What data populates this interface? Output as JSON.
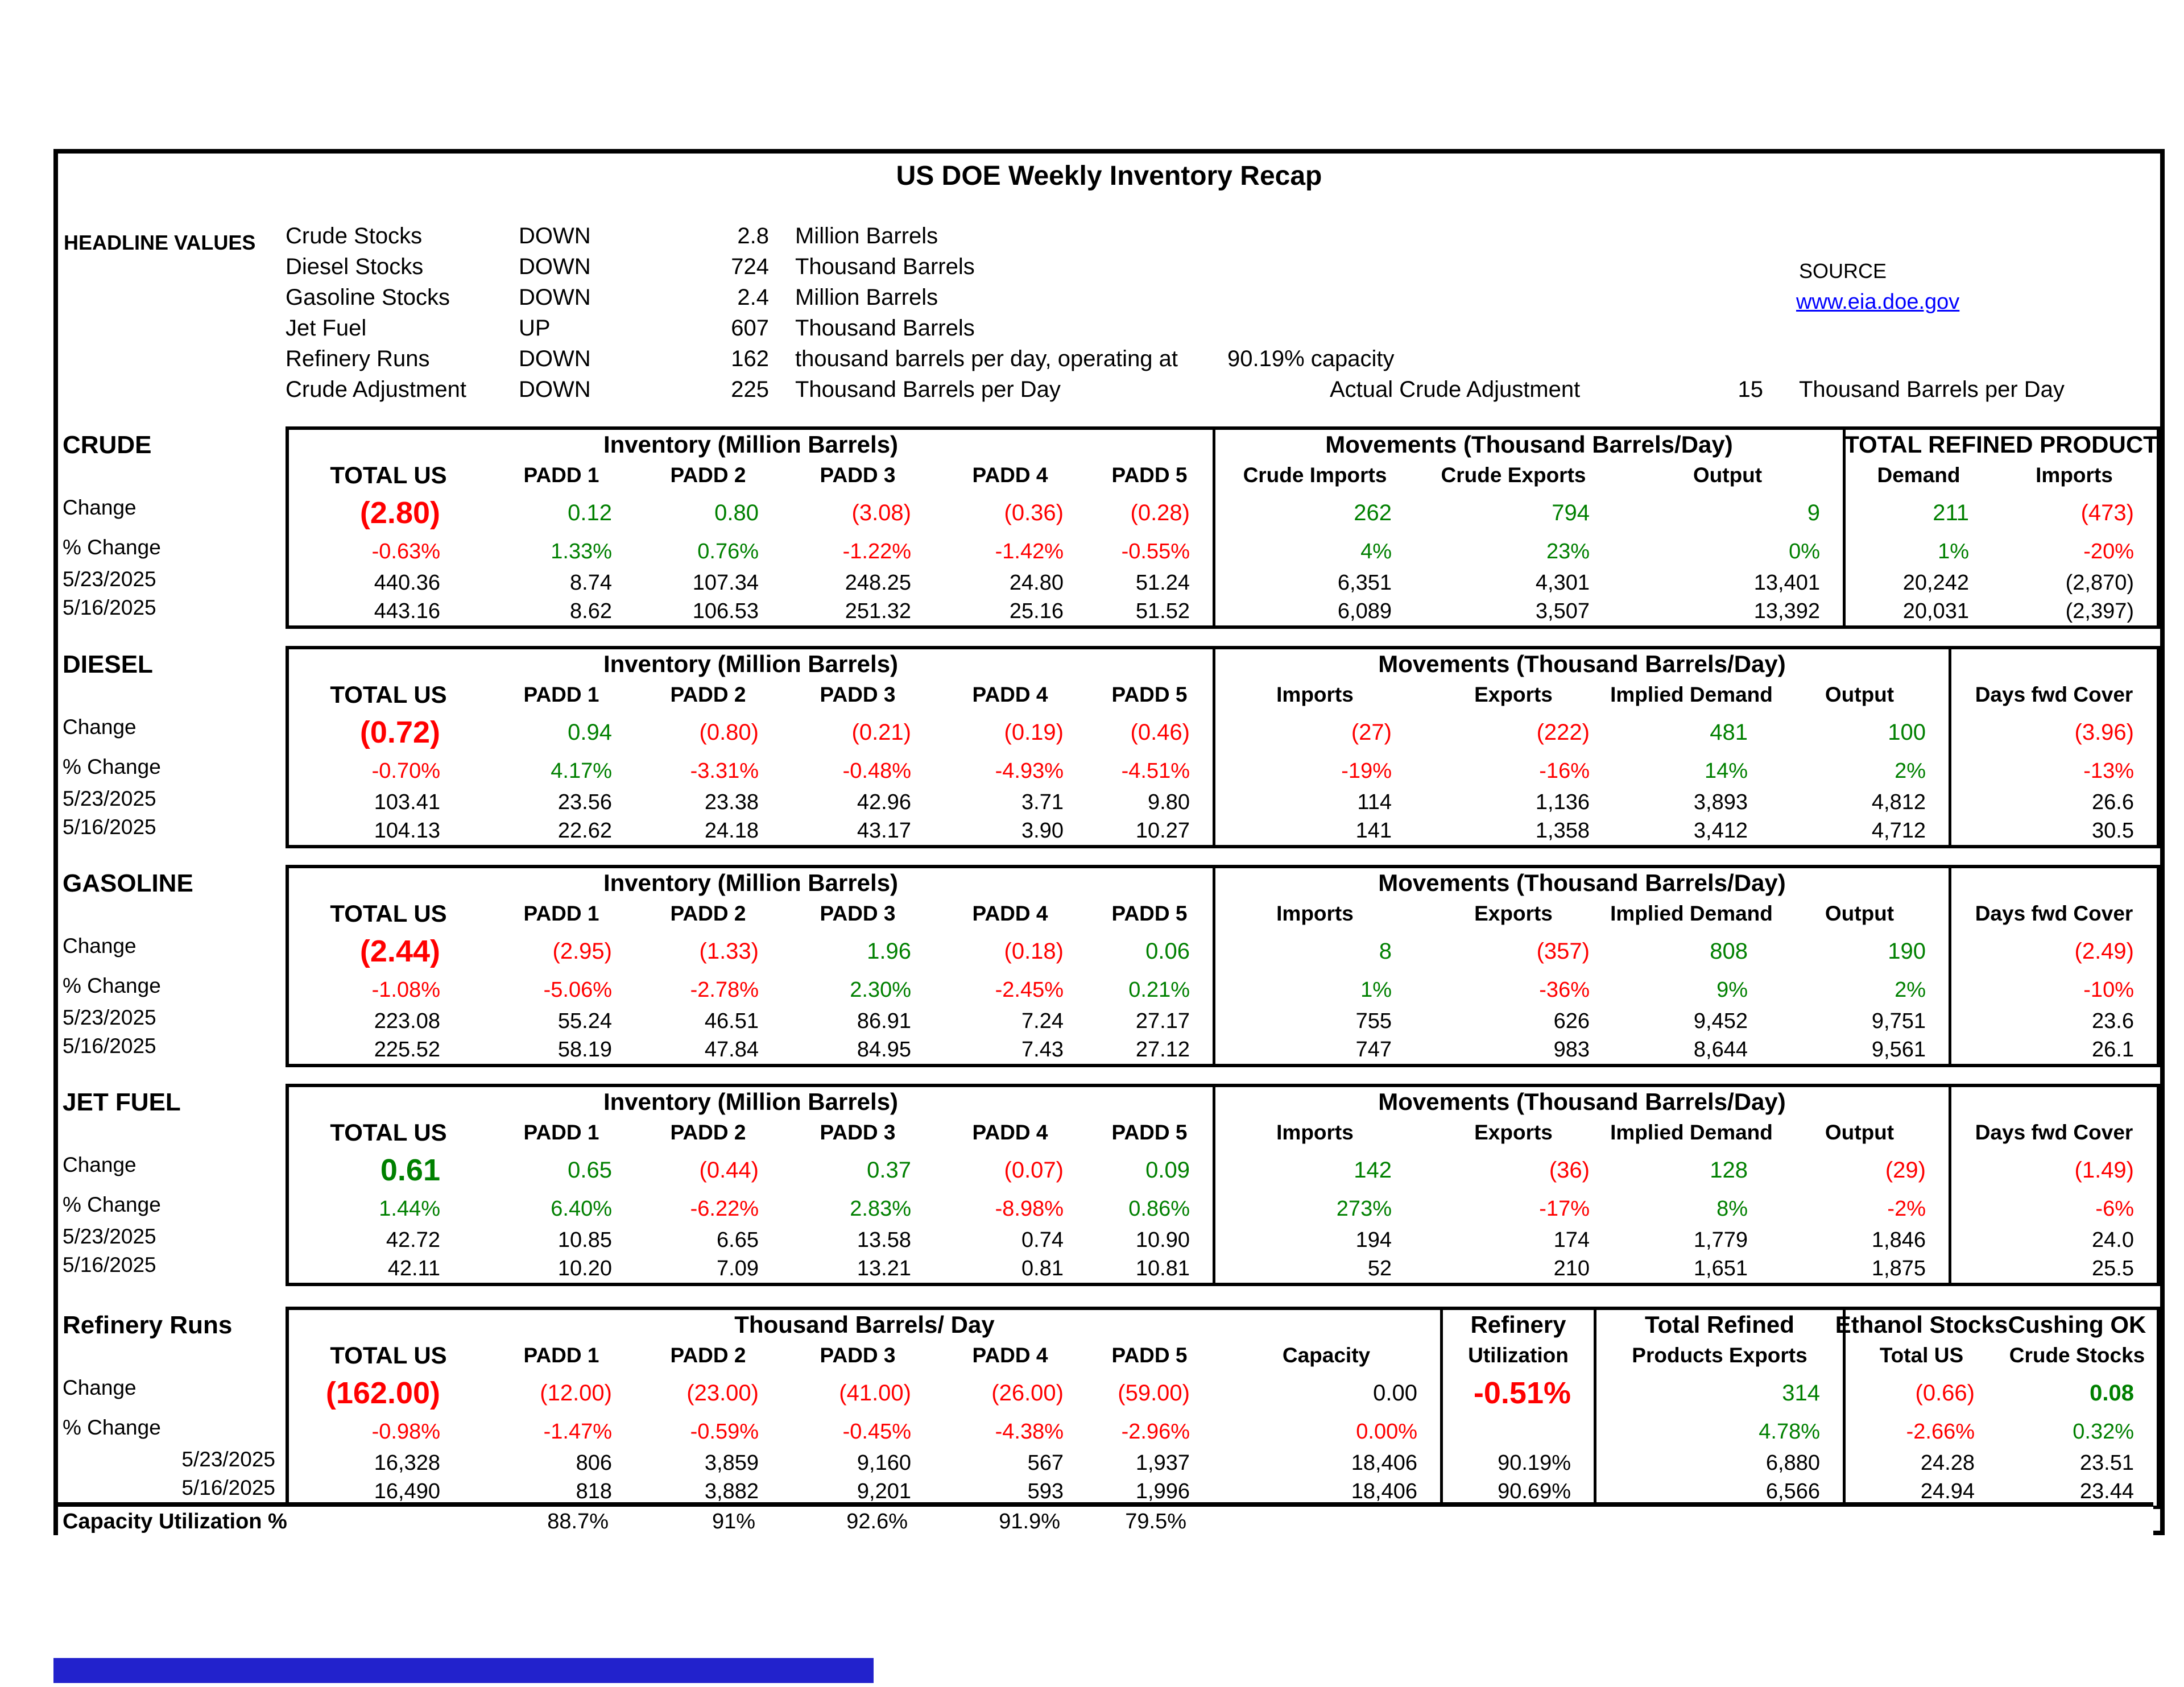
{
  "title": "US DOE Weekly Inventory Recap",
  "colors": {
    "negative": "#FF0000",
    "positive": "#008000",
    "link": "#0000FF",
    "footer_bar": "#2222CC"
  },
  "headline": {
    "label": "HEADLINE VALUES",
    "rows": [
      {
        "name": "Crude Stocks",
        "dir": "DOWN",
        "value": "2.8",
        "unit": "Million Barrels"
      },
      {
        "name": "Diesel Stocks",
        "dir": "DOWN",
        "value": "724",
        "unit": "Thousand Barrels"
      },
      {
        "name": "Gasoline Stocks",
        "dir": "DOWN",
        "value": "2.4",
        "unit": "Million Barrels"
      },
      {
        "name": "Jet Fuel",
        "dir": "UP",
        "value": "607",
        "unit": "Thousand Barrels"
      },
      {
        "name": "Refinery Runs",
        "dir": "DOWN",
        "value": "162",
        "unit": "thousand barrels per day, operating at",
        "capacity": "90.19% capacity"
      },
      {
        "name": "Crude Adjustment",
        "dir": "DOWN",
        "value": "225",
        "unit": "Thousand Barrels per Day"
      }
    ],
    "actual_adjustment": {
      "label": "Actual Crude Adjustment",
      "value": "15",
      "unit": "Thousand Barrels per Day"
    },
    "source": {
      "label": "SOURCE",
      "link": "www.eia.doe.gov"
    }
  },
  "sections": [
    {
      "key": "crude",
      "label": "CRUDE",
      "type": "crude",
      "groups": [
        {
          "label": "Inventory (Million Barrels)",
          "span": 6
        },
        {
          "label": "Movements (Thousand Barrels/Day)",
          "span": 3
        },
        {
          "label": "TOTAL REFINED PRODUCT",
          "span": 2
        }
      ],
      "columns": [
        "TOTAL US",
        "PADD 1",
        "PADD 2",
        "PADD 3",
        "PADD 4",
        "PADD 5",
        "Crude Imports",
        "Crude Exports",
        "Output",
        "Demand",
        "Imports"
      ],
      "rows": [
        {
          "label": "Change",
          "cells": [
            [
              "(2.80)",
              "r",
              "big"
            ],
            [
              "0.12",
              "g"
            ],
            [
              "0.80",
              "g"
            ],
            [
              "(3.08)",
              "r"
            ],
            [
              "(0.36)",
              "r"
            ],
            [
              "(0.28)",
              "r"
            ],
            [
              "262",
              "g"
            ],
            [
              "794",
              "g"
            ],
            [
              "9",
              "g"
            ],
            [
              "211",
              "g"
            ],
            [
              "(473)",
              "r"
            ]
          ]
        },
        {
          "label": "% Change",
          "cells": [
            [
              "-0.63%",
              "r"
            ],
            [
              "1.33%",
              "g"
            ],
            [
              "0.76%",
              "g"
            ],
            [
              "-1.22%",
              "r"
            ],
            [
              "-1.42%",
              "r"
            ],
            [
              "-0.55%",
              "r"
            ],
            [
              "4%",
              "g"
            ],
            [
              "23%",
              "g"
            ],
            [
              "0%",
              "g"
            ],
            [
              "1%",
              "g"
            ],
            [
              "-20%",
              "r"
            ]
          ]
        },
        {
          "label": "5/23/2025",
          "cells": [
            [
              "440.36"
            ],
            [
              "8.74"
            ],
            [
              "107.34"
            ],
            [
              "248.25"
            ],
            [
              "24.80"
            ],
            [
              "51.24"
            ],
            [
              "6,351"
            ],
            [
              "4,301"
            ],
            [
              "13,401"
            ],
            [
              "20,242"
            ],
            [
              "(2,870)"
            ]
          ]
        },
        {
          "label": "5/16/2025",
          "cells": [
            [
              "443.16"
            ],
            [
              "8.62"
            ],
            [
              "106.53"
            ],
            [
              "251.32"
            ],
            [
              "25.16"
            ],
            [
              "51.52"
            ],
            [
              "6,089"
            ],
            [
              "3,507"
            ],
            [
              "13,392"
            ],
            [
              "20,031"
            ],
            [
              "(2,397)"
            ]
          ]
        }
      ]
    },
    {
      "key": "diesel",
      "label": "DIESEL",
      "type": "products",
      "groups": [
        {
          "label": "Inventory (Million Barrels)",
          "span": 6
        },
        {
          "label": "Movements (Thousand Barrels/Day)",
          "span": 4
        },
        {
          "label": "",
          "span": 1
        }
      ],
      "columns": [
        "TOTAL US",
        "PADD 1",
        "PADD 2",
        "PADD 3",
        "PADD 4",
        "PADD 5",
        "Imports",
        "Exports",
        "Implied Demand",
        "Output",
        "Days fwd Cover"
      ],
      "rows": [
        {
          "label": "Change",
          "cells": [
            [
              "(0.72)",
              "r",
              "big"
            ],
            [
              "0.94",
              "g"
            ],
            [
              "(0.80)",
              "r"
            ],
            [
              "(0.21)",
              "r"
            ],
            [
              "(0.19)",
              "r"
            ],
            [
              "(0.46)",
              "r"
            ],
            [
              "(27)",
              "r"
            ],
            [
              "(222)",
              "r"
            ],
            [
              "481",
              "g"
            ],
            [
              "100",
              "g"
            ],
            [
              "(3.96)",
              "r"
            ]
          ]
        },
        {
          "label": "% Change",
          "cells": [
            [
              "-0.70%",
              "r"
            ],
            [
              "4.17%",
              "g"
            ],
            [
              "-3.31%",
              "r"
            ],
            [
              "-0.48%",
              "r"
            ],
            [
              "-4.93%",
              "r"
            ],
            [
              "-4.51%",
              "r"
            ],
            [
              "-19%",
              "r"
            ],
            [
              "-16%",
              "r"
            ],
            [
              "14%",
              "g"
            ],
            [
              "2%",
              "g"
            ],
            [
              "-13%",
              "r"
            ]
          ]
        },
        {
          "label": "5/23/2025",
          "cells": [
            [
              "103.41"
            ],
            [
              "23.56"
            ],
            [
              "23.38"
            ],
            [
              "42.96"
            ],
            [
              "3.71"
            ],
            [
              "9.80"
            ],
            [
              "114"
            ],
            [
              "1,136"
            ],
            [
              "3,893"
            ],
            [
              "4,812"
            ],
            [
              "26.6"
            ]
          ]
        },
        {
          "label": "5/16/2025",
          "cells": [
            [
              "104.13"
            ],
            [
              "22.62"
            ],
            [
              "24.18"
            ],
            [
              "43.17"
            ],
            [
              "3.90"
            ],
            [
              "10.27"
            ],
            [
              "141"
            ],
            [
              "1,358"
            ],
            [
              "3,412"
            ],
            [
              "4,712"
            ],
            [
              "30.5"
            ]
          ]
        }
      ]
    },
    {
      "key": "gasoline",
      "label": "GASOLINE",
      "type": "products",
      "groups": [
        {
          "label": "Inventory (Million Barrels)",
          "span": 6
        },
        {
          "label": "Movements (Thousand Barrels/Day)",
          "span": 4
        },
        {
          "label": "",
          "span": 1
        }
      ],
      "columns": [
        "TOTAL US",
        "PADD 1",
        "PADD 2",
        "PADD 3",
        "PADD 4",
        "PADD 5",
        "Imports",
        "Exports",
        "Implied Demand",
        "Output",
        "Days fwd Cover"
      ],
      "rows": [
        {
          "label": "Change",
          "cells": [
            [
              "(2.44)",
              "r",
              "big"
            ],
            [
              "(2.95)",
              "r"
            ],
            [
              "(1.33)",
              "r"
            ],
            [
              "1.96",
              "g"
            ],
            [
              "(0.18)",
              "r"
            ],
            [
              "0.06",
              "g"
            ],
            [
              "8",
              "g"
            ],
            [
              "(357)",
              "r"
            ],
            [
              "808",
              "g"
            ],
            [
              "190",
              "g"
            ],
            [
              "(2.49)",
              "r"
            ]
          ]
        },
        {
          "label": "% Change",
          "cells": [
            [
              "-1.08%",
              "r"
            ],
            [
              "-5.06%",
              "r"
            ],
            [
              "-2.78%",
              "r"
            ],
            [
              "2.30%",
              "g"
            ],
            [
              "-2.45%",
              "r"
            ],
            [
              "0.21%",
              "g"
            ],
            [
              "1%",
              "g"
            ],
            [
              "-36%",
              "r"
            ],
            [
              "9%",
              "g"
            ],
            [
              "2%",
              "g"
            ],
            [
              "-10%",
              "r"
            ]
          ]
        },
        {
          "label": "5/23/2025",
          "cells": [
            [
              "223.08"
            ],
            [
              "55.24"
            ],
            [
              "46.51"
            ],
            [
              "86.91"
            ],
            [
              "7.24"
            ],
            [
              "27.17"
            ],
            [
              "755"
            ],
            [
              "626"
            ],
            [
              "9,452"
            ],
            [
              "9,751"
            ],
            [
              "23.6"
            ]
          ]
        },
        {
          "label": "5/16/2025",
          "cells": [
            [
              "225.52"
            ],
            [
              "58.19"
            ],
            [
              "47.84"
            ],
            [
              "84.95"
            ],
            [
              "7.43"
            ],
            [
              "27.12"
            ],
            [
              "747"
            ],
            [
              "983"
            ],
            [
              "8,644"
            ],
            [
              "9,561"
            ],
            [
              "26.1"
            ]
          ]
        }
      ]
    },
    {
      "key": "jetfuel",
      "label": "JET FUEL",
      "type": "products",
      "groups": [
        {
          "label": "Inventory (Million Barrels)",
          "span": 6
        },
        {
          "label": "Movements (Thousand Barrels/Day)",
          "span": 4
        },
        {
          "label": "",
          "span": 1
        }
      ],
      "columns": [
        "TOTAL US",
        "PADD 1",
        "PADD 2",
        "PADD 3",
        "PADD 4",
        "PADD 5",
        "Imports",
        "Exports",
        "Implied Demand",
        "Output",
        "Days fwd Cover"
      ],
      "rows": [
        {
          "label": "Change",
          "cells": [
            [
              "0.61",
              "g",
              "big"
            ],
            [
              "0.65",
              "g"
            ],
            [
              "(0.44)",
              "r"
            ],
            [
              "0.37",
              "g"
            ],
            [
              "(0.07)",
              "r"
            ],
            [
              "0.09",
              "g"
            ],
            [
              "142",
              "g"
            ],
            [
              "(36)",
              "r"
            ],
            [
              "128",
              "g"
            ],
            [
              "(29)",
              "r"
            ],
            [
              "(1.49)",
              "r"
            ]
          ]
        },
        {
          "label": "% Change",
          "cells": [
            [
              "1.44%",
              "g"
            ],
            [
              "6.40%",
              "g"
            ],
            [
              "-6.22%",
              "r"
            ],
            [
              "2.83%",
              "g"
            ],
            [
              "-8.98%",
              "r"
            ],
            [
              "0.86%",
              "g"
            ],
            [
              "273%",
              "g"
            ],
            [
              "-17%",
              "r"
            ],
            [
              "8%",
              "g"
            ],
            [
              "-2%",
              "r"
            ],
            [
              "-6%",
              "r"
            ]
          ]
        },
        {
          "label": "5/23/2025",
          "cells": [
            [
              "42.72"
            ],
            [
              "10.85"
            ],
            [
              "6.65"
            ],
            [
              "13.58"
            ],
            [
              "0.74"
            ],
            [
              "10.90"
            ],
            [
              "194"
            ],
            [
              "174"
            ],
            [
              "1,779"
            ],
            [
              "1,846"
            ],
            [
              "24.0"
            ]
          ]
        },
        {
          "label": "5/16/2025",
          "cells": [
            [
              "42.11"
            ],
            [
              "10.20"
            ],
            [
              "7.09"
            ],
            [
              "13.21"
            ],
            [
              "0.81"
            ],
            [
              "10.81"
            ],
            [
              "52"
            ],
            [
              "210"
            ],
            [
              "1,651"
            ],
            [
              "1,875"
            ],
            [
              "25.5"
            ]
          ]
        }
      ]
    },
    {
      "key": "refinery",
      "label": "Refinery Runs",
      "type": "refinery",
      "dates_right": true,
      "groups": [
        {
          "label": "Thousand Barrels/ Day",
          "span": 7
        },
        {
          "label": "Refinery",
          "span": 1
        },
        {
          "label": "Total Refined",
          "span": 1
        },
        {
          "label": "Ethanol Stocks",
          "span": 1
        },
        {
          "label": "Cushing OK",
          "span": 1
        }
      ],
      "columns": [
        "TOTAL US",
        "PADD 1",
        "PADD 2",
        "PADD 3",
        "PADD 4",
        "PADD 5",
        "Capacity",
        "Utilization",
        "Products Exports",
        "Total US",
        "Crude Stocks"
      ],
      "rows": [
        {
          "label": "Change",
          "cells": [
            [
              "(162.00)",
              "r",
              "big"
            ],
            [
              "(12.00)",
              "r"
            ],
            [
              "(23.00)",
              "r"
            ],
            [
              "(41.00)",
              "r"
            ],
            [
              "(26.00)",
              "r"
            ],
            [
              "(59.00)",
              "r"
            ],
            [
              "0.00"
            ],
            [
              "-0.51%",
              "r",
              "big"
            ],
            [
              "314",
              "g"
            ],
            [
              "(0.66)",
              "r"
            ],
            [
              "0.08",
              "g",
              "bold"
            ]
          ]
        },
        {
          "label": "% Change",
          "cells": [
            [
              "-0.98%",
              "r"
            ],
            [
              "-1.47%",
              "r"
            ],
            [
              "-0.59%",
              "r"
            ],
            [
              "-0.45%",
              "r"
            ],
            [
              "-4.38%",
              "r"
            ],
            [
              "-2.96%",
              "r"
            ],
            [
              "0.00%",
              "r"
            ],
            [
              ""
            ],
            [
              "4.78%",
              "g"
            ],
            [
              "-2.66%",
              "r"
            ],
            [
              "0.32%",
              "g"
            ]
          ]
        },
        {
          "label": "5/23/2025",
          "cells": [
            [
              "16,328"
            ],
            [
              "806"
            ],
            [
              "3,859"
            ],
            [
              "9,160"
            ],
            [
              "567"
            ],
            [
              "1,937"
            ],
            [
              "18,406"
            ],
            [
              "90.19%"
            ],
            [
              "6,880"
            ],
            [
              "24.28"
            ],
            [
              "23.51"
            ]
          ]
        },
        {
          "label": "5/16/2025",
          "cells": [
            [
              "16,490"
            ],
            [
              "818"
            ],
            [
              "3,882"
            ],
            [
              "9,201"
            ],
            [
              "593"
            ],
            [
              "1,996"
            ],
            [
              "18,406"
            ],
            [
              "90.69%"
            ],
            [
              "6,566"
            ],
            [
              "24.94"
            ],
            [
              "23.44"
            ]
          ]
        }
      ],
      "cap_row": {
        "label": "Capacity Utilization %",
        "values": [
          "88.7%",
          "91%",
          "92.6%",
          "91.9%",
          "79.5%"
        ]
      }
    }
  ]
}
